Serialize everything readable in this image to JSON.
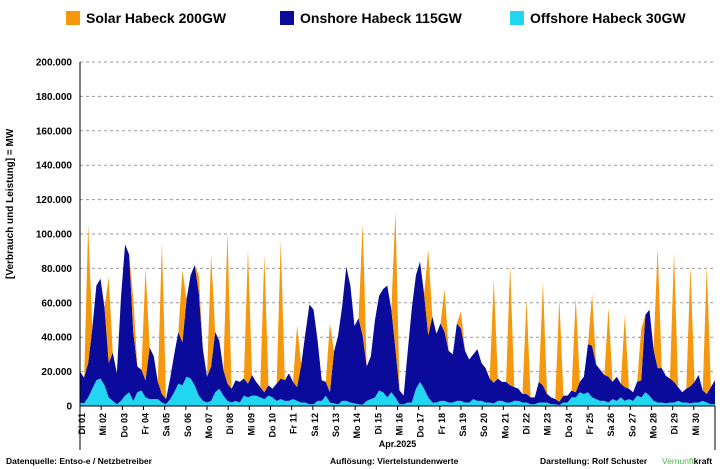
{
  "legend": [
    {
      "label": "Solar Habeck 200GW",
      "color": "#f5980e"
    },
    {
      "label": "Onshore Habeck 115GW",
      "color": "#0a0a9b"
    },
    {
      "label": "Offshore Habeck 30GW",
      "color": "#22d6f2"
    }
  ],
  "footer": {
    "source": "Datenquelle: Entso-e  / Netzbetreiber",
    "resolution": "Auflösung: Viertelstundenwerte",
    "author": "Darstellung:  Rolf Schuster",
    "brand_a": "Vernunft",
    "brand_b": "kraft",
    "brand_a_color": "#4cb848"
  },
  "chart_data": {
    "type": "area",
    "stacked": true,
    "ylabel": "[Verbrauch und Leistung] =  MW",
    "x_group_label": "Apr.2025",
    "ylim": [
      0,
      200000
    ],
    "yticks": [
      "0",
      "20.000",
      "40.000",
      "60.000",
      "80.000",
      "100.000",
      "120.000",
      "140.000",
      "160.000",
      "180.000",
      "200.000"
    ],
    "grid": "horizontal dashed",
    "legend_position": "top",
    "x_tick_labels": [
      "Di 01",
      "Mi 02",
      "Do 03",
      "Fr 04",
      "Sa 05",
      "So 06",
      "Mo 07",
      "Di 08",
      "Mi 09",
      "Do 10",
      "Fr 11",
      "Sa 12",
      "So 13",
      "Mo 14",
      "Di 15",
      "Mi 16",
      "Do 17",
      "Fr 18",
      "Sa 19",
      "So 20",
      "Mo 21",
      "Di 22",
      "Mi 23",
      "Do 24",
      "Fr 25",
      "Sa 26",
      "So 27",
      "Mo 28",
      "Di 29",
      "Mi 30"
    ],
    "x_tick_colors": [
      "#000000",
      "#000000",
      "#000000",
      "#000000",
      "#000000",
      "#000000",
      "#000000",
      "#000000",
      "#000000",
      "#000000",
      "#000000",
      "#000000",
      "#000000",
      "#000000",
      "#000000",
      "#000000",
      "#000000",
      "#000000",
      "#000000",
      "#000000",
      "#000000",
      "#000000",
      "#000000",
      "#000000",
      "#000000",
      "#000000",
      "#000000",
      "#000000",
      "#000000",
      "#000000"
    ],
    "days": [
      "Di 01",
      "Mi 02",
      "Do 03",
      "Fr 04",
      "Sa 05",
      "So 06",
      "Mo 07",
      "Di 08",
      "Mi 09",
      "Do 10",
      "Fr 11",
      "Sa 12",
      "So 13",
      "Mo 14",
      "Di 15",
      "Mi 16",
      "Do 17",
      "Fr 18",
      "Sa 19",
      "So 20",
      "Mo 21",
      "Di 22",
      "Mi 23",
      "Do 24",
      "Fr 25",
      "Sa 26",
      "So 27",
      "Mo 28",
      "Di 29",
      "Mi 30"
    ],
    "series": [
      {
        "name": "Offshore Habeck 30GW",
        "color": "#22d6f2",
        "values": [
          2000,
          1500,
          5000,
          10000,
          15000,
          16000,
          12000,
          5000,
          3000,
          1000,
          3000,
          6000,
          8000,
          3000,
          8000,
          9000,
          5000,
          4000,
          4000,
          4000,
          2000,
          1000,
          4000,
          8000,
          13000,
          12000,
          17000,
          16000,
          12000,
          6000,
          3000,
          2000,
          3000,
          8000,
          10000,
          6000,
          3000,
          2000,
          3000,
          2000,
          6000,
          5000,
          6000,
          6000,
          5000,
          4000,
          6000,
          5000,
          3000,
          4000,
          3000,
          3000,
          4000,
          3000,
          2000,
          2000,
          1000,
          1000,
          3000,
          3000,
          6000,
          2000,
          1500,
          1000,
          3000,
          3000,
          2000,
          1500,
          1000,
          800,
          3000,
          4000,
          5000,
          9000,
          8000,
          5000,
          8000,
          5000,
          1000,
          1000,
          2000,
          2000,
          10000,
          14000,
          10000,
          5000,
          2000,
          2000,
          3000,
          3000,
          2000,
          2000,
          3000,
          3000,
          2000,
          2000,
          4000,
          3000,
          3000,
          2000,
          2000,
          1500,
          3000,
          3000,
          2000,
          2000,
          3000,
          3000,
          2000,
          2000,
          1000,
          1000,
          2000,
          2000,
          2000,
          1000,
          1000,
          500,
          2000,
          2000,
          5000,
          5000,
          8000,
          7000,
          8000,
          5000,
          4000,
          3000,
          3000,
          2000,
          4000,
          3000,
          5000,
          3000,
          4000,
          3000,
          6000,
          5000,
          8000,
          6000,
          3000,
          2000,
          2000,
          1500,
          2000,
          2000,
          3000,
          2000,
          2000,
          1500,
          2000,
          2000,
          3000,
          2000,
          1000,
          1000
        ]
      },
      {
        "name": "Onshore Habeck 115GW",
        "color": "#0a0a9b",
        "values": [
          18000,
          15000,
          20000,
          35000,
          55000,
          58000,
          45000,
          20000,
          28000,
          18000,
          60000,
          88000,
          80000,
          40000,
          15000,
          12000,
          10000,
          30000,
          25000,
          10000,
          5000,
          3000,
          12000,
          22000,
          30000,
          25000,
          45000,
          60000,
          70000,
          60000,
          30000,
          15000,
          20000,
          35000,
          28000,
          15000,
          10000,
          8000,
          12000,
          12000,
          10000,
          8000,
          12000,
          8000,
          6000,
          4000,
          6000,
          5000,
          10000,
          12000,
          12000,
          16000,
          10000,
          8000,
          22000,
          40000,
          58000,
          55000,
          35000,
          12000,
          8000,
          6000,
          30000,
          40000,
          55000,
          78000,
          68000,
          45000,
          50000,
          40000,
          20000,
          25000,
          45000,
          55000,
          60000,
          65000,
          48000,
          28000,
          8000,
          5000,
          30000,
          55000,
          66000,
          70000,
          55000,
          36000,
          50000,
          40000,
          45000,
          40000,
          30000,
          28000,
          45000,
          42000,
          30000,
          25000,
          26000,
          30000,
          22000,
          20000,
          14000,
          12000,
          13000,
          11000,
          12000,
          10000,
          8000,
          7000,
          5000,
          5000,
          4000,
          4000,
          12000,
          10000,
          5000,
          4000,
          3000,
          2000,
          4000,
          4000,
          4000,
          3000,
          6000,
          10000,
          28000,
          30000,
          20000,
          18000,
          15000,
          15000,
          10000,
          14000,
          8000,
          8000,
          6000,
          5000,
          8000,
          10000,
          45000,
          50000,
          30000,
          20000,
          20000,
          16000,
          14000,
          12000,
          8000,
          6000,
          8000,
          10000,
          12000,
          16000,
          6000,
          5000,
          10000,
          14000
        ]
      },
      {
        "name": "Solar Habeck 200GW",
        "color": "#f5980e",
        "values": [
          0,
          0,
          80000,
          0,
          0,
          0,
          0,
          50000,
          0,
          0,
          0,
          0,
          0,
          20000,
          0,
          0,
          65000,
          0,
          0,
          0,
          88000,
          0,
          0,
          0,
          0,
          42000,
          0,
          0,
          0,
          10000,
          0,
          0,
          65000,
          0,
          0,
          0,
          88000,
          0,
          0,
          0,
          0,
          78000,
          0,
          0,
          0,
          80000,
          0,
          0,
          0,
          80000,
          0,
          0,
          0,
          36000,
          0,
          0,
          0,
          0,
          0,
          0,
          0,
          40000,
          0,
          0,
          0,
          0,
          0,
          0,
          0,
          65000,
          0,
          0,
          0,
          0,
          0,
          0,
          0,
          80000,
          0,
          0,
          0,
          0,
          0,
          0,
          0,
          50000,
          0,
          0,
          0,
          25000,
          0,
          0,
          0,
          10000,
          0,
          0,
          0,
          0,
          0,
          0,
          0,
          60000,
          0,
          0,
          0,
          70000,
          0,
          0,
          0,
          55000,
          0,
          0,
          0,
          60000,
          0,
          0,
          0,
          60000,
          0,
          0,
          0,
          55000,
          0,
          0,
          0,
          30000,
          0,
          0,
          0,
          40000,
          0,
          0,
          0,
          42000,
          0,
          0,
          0,
          30000,
          0,
          0,
          0,
          70000,
          0,
          0,
          0,
          75000,
          0,
          0,
          0,
          70000,
          0,
          0,
          0,
          75000,
          0,
          0
        ]
      }
    ]
  }
}
